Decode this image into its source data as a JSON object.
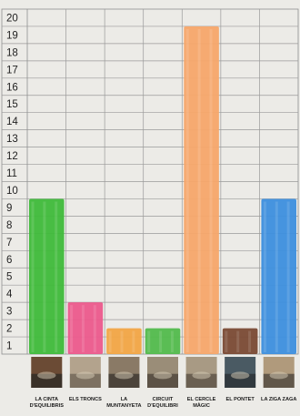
{
  "chart_data": {
    "type": "bar",
    "title": "",
    "xlabel": "",
    "ylabel": "",
    "ylim": [
      0,
      20
    ],
    "yticks": [
      "1",
      "2",
      "3",
      "4",
      "5",
      "6",
      "7",
      "8",
      "9",
      "10",
      "11",
      "12",
      "13",
      "14",
      "15",
      "16",
      "17",
      "18",
      "19",
      "20"
    ],
    "grid": true,
    "categories": [
      [
        "LA CINTA",
        "D'EQUILIBRIS"
      ],
      [
        "ELS TRONCS"
      ],
      [
        "LA",
        "MUNTANYETA"
      ],
      [
        "CIRCUIT",
        "D'EQUILIBRI"
      ],
      [
        "EL CERCLE",
        "MÀGIC"
      ],
      [
        "EL PONTET"
      ],
      [
        "LA ZIGA ZAGA"
      ]
    ],
    "values": [
      9,
      3,
      1.5,
      1.5,
      19,
      1.5,
      9
    ],
    "colors": [
      "#3fba3a",
      "#ec5a8c",
      "#f2a545",
      "#52bb4c",
      "#f7a66a",
      "#7a4a34",
      "#3d8fde"
    ],
    "photos": [
      "balance-beam-photo",
      "logs-photo",
      "mound-photo",
      "balance-circuit-photo",
      "magic-circle-photo",
      "small-bridge-photo",
      "zigzag-photo"
    ]
  }
}
